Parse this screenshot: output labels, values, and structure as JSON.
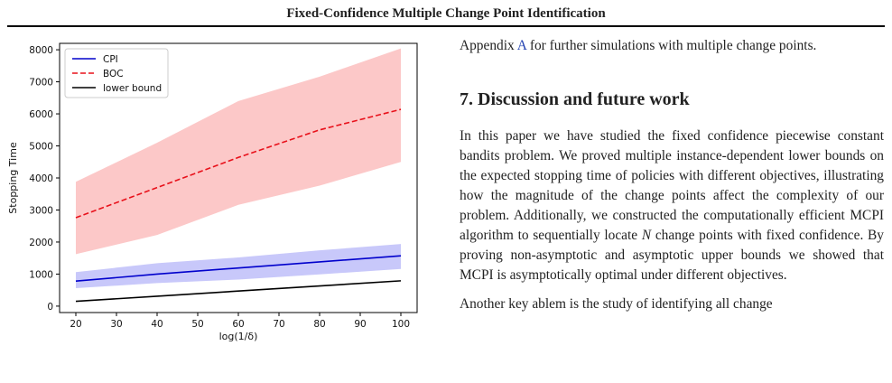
{
  "header": {
    "running_title": "Fixed-Confidence Multiple Change Point Identification"
  },
  "chart_data": {
    "type": "line",
    "x": [
      20,
      40,
      60,
      80,
      100
    ],
    "xlabel": "log(1/δ)",
    "ylabel": "Stopping Time",
    "xlim": [
      16,
      104
    ],
    "ylim": [
      -200,
      8200
    ],
    "xticks": [
      20,
      30,
      40,
      50,
      60,
      70,
      80,
      90,
      100
    ],
    "yticks": [
      0,
      1000,
      2000,
      3000,
      4000,
      5000,
      6000,
      7000,
      8000
    ],
    "legend_position": "top-left",
    "series": [
      {
        "name": "CPI",
        "color": "#0000cc",
        "dash": "solid",
        "band_color": "#c8c8fa",
        "values": [
          780,
          1000,
          1190,
          1380,
          1570
        ],
        "band_low": [
          560,
          720,
          830,
          990,
          1160
        ],
        "band_high": [
          1060,
          1340,
          1520,
          1740,
          1940
        ]
      },
      {
        "name": "BOC",
        "color": "#e8101a",
        "dash": "dashed",
        "band_color": "#fcc8c8",
        "values": [
          2760,
          3700,
          4640,
          5500,
          6140
        ],
        "band_low": [
          1620,
          2220,
          3160,
          3760,
          4500
        ],
        "band_high": [
          3880,
          5100,
          6400,
          7160,
          8040
        ]
      },
      {
        "name": "lower bound",
        "color": "#000000",
        "dash": "solid",
        "values": [
          150,
          310,
          470,
          630,
          790
        ]
      }
    ]
  },
  "text": {
    "para1_before_link": "Appendix ",
    "para1_link": "A",
    "para1_after_link": " for further simulations with multiple change points.",
    "section_heading": "7. Discussion and future work",
    "para2": "In this paper we have studied the fixed confidence piecewise constant bandits problem. We proved multiple instance-dependent lower bounds on the expected stopping time of policies with different objectives, illustrating how the magnitude of the change points affect the complexity of our problem. Additionally, we constructed the computationally efficient MCPI algorithm to sequentially locate N change points with fixed confidence. By proving non-asymptotic and asymptotic upper bounds we showed that MCPI is asymptotically optimal under different objectives.",
    "para3": "Another key ablem is the study of identifying all change"
  }
}
